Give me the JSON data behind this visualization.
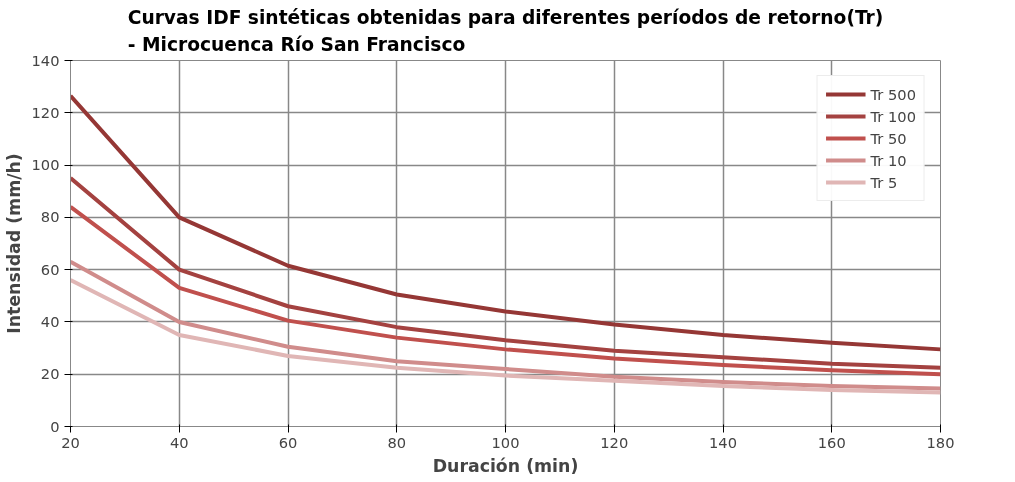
{
  "chart_data": {
    "type": "line",
    "title": "Curvas IDF sintéticas obtenidas para diferentes períodos de retorno(Tr)\n- Microcuenca Río San Francisco",
    "xlabel": "Duración (min)",
    "ylabel": "Intensidad (mm/h)",
    "x": [
      20,
      40,
      60,
      80,
      100,
      120,
      140,
      160,
      180
    ],
    "series": [
      {
        "name": "Tr 500",
        "color": "#953735",
        "values": [
          126.5,
          80,
          61.5,
          50.5,
          44,
          39,
          35,
          32,
          29.5
        ]
      },
      {
        "name": "Tr 100",
        "color": "#a44240",
        "values": [
          95,
          60,
          46,
          38,
          33,
          29,
          26.5,
          24,
          22.5
        ]
      },
      {
        "name": "Tr 50",
        "color": "#c0504d",
        "values": [
          84,
          53,
          40.5,
          34,
          29.5,
          26,
          23.5,
          21.5,
          20
        ]
      },
      {
        "name": "Tr 10",
        "color": "#d08c8b",
        "values": [
          63,
          40,
          30.5,
          25,
          22,
          19,
          17,
          15.5,
          14.5
        ]
      },
      {
        "name": "Tr 5",
        "color": "#e0b6b5",
        "values": [
          56,
          35,
          27,
          22.5,
          19.5,
          17.5,
          15.5,
          14,
          13
        ]
      }
    ],
    "xlim": [
      20,
      180
    ],
    "xticks": [
      20,
      40,
      60,
      80,
      100,
      120,
      140,
      160,
      180
    ],
    "ylim": [
      0,
      140
    ],
    "yticks": [
      0,
      20,
      40,
      60,
      80,
      100,
      120,
      140
    ],
    "grid": true,
    "legend": "top right",
    "marker": "none",
    "line_style": "solid"
  }
}
